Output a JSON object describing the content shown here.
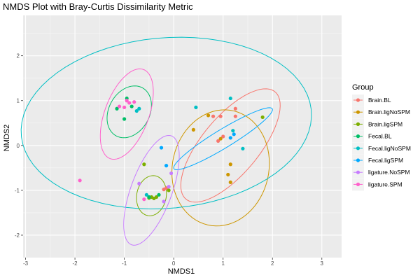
{
  "chart_data": {
    "type": "scatter",
    "title": "NMDS Plot with Bray-Curtis Dissimilarity Metric",
    "xlabel": "NMDS1",
    "ylabel": "NMDS2",
    "xlim": [
      -3.05,
      3.4
    ],
    "ylim": [
      -2.5,
      2.9
    ],
    "x_ticks": [
      -3,
      -2,
      -1,
      0,
      1,
      2,
      3
    ],
    "y_ticks": [
      -2,
      -1,
      0,
      1,
      2
    ],
    "grid": true,
    "panel_background": "#ebebeb",
    "legend": {
      "title": "Group",
      "placement": "right"
    },
    "series": [
      {
        "name": "Brain.BL",
        "color": "#F8766D",
        "points": [
          [
            0.8,
            0.65
          ],
          [
            0.95,
            0.65
          ],
          [
            1.25,
            0.82
          ],
          [
            1.25,
            0.65
          ],
          [
            0.9,
            0.1
          ],
          [
            1.0,
            0.2
          ],
          [
            -0.15,
            -0.95
          ],
          [
            -0.2,
            -0.98
          ]
        ],
        "ellipse": {
          "cx": 1.15,
          "cy": 0.0,
          "rx": 1.5,
          "ry": 0.6,
          "angle_deg": 54
        }
      },
      {
        "name": "Brain.ligNoSPM",
        "color": "#CD9600",
        "points": [
          [
            0.4,
            0.35
          ],
          [
            0.7,
            0.67
          ],
          [
            1.1,
            -0.65
          ],
          [
            1.15,
            -0.42
          ],
          [
            1.15,
            -0.82
          ],
          [
            0.95,
            0.15
          ]
        ],
        "ellipse": {
          "cx": 0.95,
          "cy": -0.5,
          "rx": 1.3,
          "ry": 0.98,
          "angle_deg": 82
        }
      },
      {
        "name": "Brain.ligSPM",
        "color": "#7CAE00",
        "points": [
          [
            -0.6,
            -0.42
          ],
          [
            -0.5,
            -1.17
          ],
          [
            -0.45,
            -1.15
          ],
          [
            -0.4,
            -1.18
          ],
          [
            -0.35,
            -1.15
          ],
          [
            -0.1,
            -1.0
          ],
          [
            1.8,
            0.63
          ]
        ],
        "ellipse": {
          "cx": -0.45,
          "cy": -1.12,
          "rx": 0.45,
          "ry": 0.3,
          "angle_deg": 82
        }
      },
      {
        "name": "Fecal.BL",
        "color": "#00BE67",
        "points": [
          [
            -1.15,
            0.82
          ],
          [
            -0.95,
            1.05
          ],
          [
            -0.85,
            0.87
          ],
          [
            -1.0,
            0.59
          ],
          [
            -0.5,
            -1.15
          ],
          [
            -0.3,
            -1.1
          ]
        ],
        "ellipse": {
          "cx": -0.9,
          "cy": 0.75,
          "rx": 0.6,
          "ry": 0.42,
          "angle_deg": 68
        }
      },
      {
        "name": "Fecal.ligNoSPM",
        "color": "#00BFC4",
        "points": [
          [
            -0.75,
            0.77
          ],
          [
            -0.7,
            0.82
          ],
          [
            0.45,
            0.85
          ],
          [
            1.15,
            1.05
          ],
          [
            1.2,
            0.33
          ],
          [
            1.4,
            -0.07
          ],
          [
            -0.55,
            -1.1
          ]
        ],
        "ellipse": {
          "cx": -0.15,
          "cy": 0.5,
          "rx": 2.95,
          "ry": 1.9,
          "angle_deg": 6
        }
      },
      {
        "name": "Fecal.ligSPM",
        "color": "#00A9FF",
        "points": [
          [
            1.15,
            0.17
          ],
          [
            1.22,
            0.25
          ],
          [
            -0.15,
            -0.45
          ],
          [
            -0.25,
            -0.05
          ]
        ],
        "ellipse": {
          "cx": 1.0,
          "cy": 0.15,
          "rx": 1.2,
          "ry": 0.2,
          "angle_deg": 34
        }
      },
      {
        "name": "ligature.NoSPM",
        "color": "#C77CFF",
        "points": [
          [
            -0.7,
            -0.85
          ],
          [
            -0.1,
            -0.92
          ],
          [
            -0.2,
            -1.25
          ],
          [
            -0.05,
            -0.62
          ]
        ],
        "ellipse": {
          "cx": -0.45,
          "cy": -1.0,
          "rx": 1.28,
          "ry": 0.42,
          "angle_deg": 72
        }
      },
      {
        "name": "ligature.SPM",
        "color": "#FF61CC",
        "points": [
          [
            -1.9,
            -0.78
          ],
          [
            -1.1,
            0.87
          ],
          [
            -1.0,
            0.85
          ],
          [
            -0.9,
            0.95
          ],
          [
            -0.8,
            0.97
          ],
          [
            -0.95,
            1.0
          ],
          [
            -0.6,
            -1.2
          ]
        ],
        "ellipse": {
          "cx": -0.95,
          "cy": 0.7,
          "rx": 1.05,
          "ry": 0.45,
          "angle_deg": 72
        }
      }
    ]
  }
}
